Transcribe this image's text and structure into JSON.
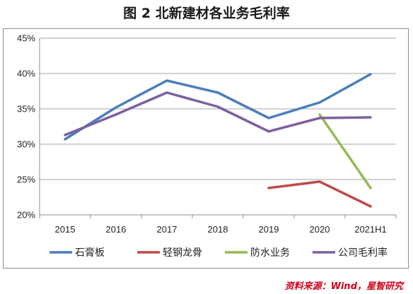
{
  "title": "图 2  北新建材各业务毛利率",
  "source": "资料来源：Wind，星智研究",
  "chart_data": {
    "type": "line",
    "title": "图 2  北新建材各业务毛利率",
    "xlabel": "",
    "ylabel": "",
    "categories": [
      "2015",
      "2016",
      "2017",
      "2018",
      "2019",
      "2020",
      "2021H1"
    ],
    "ylim": [
      0.2,
      0.45
    ],
    "yticks": [
      "20%",
      "25%",
      "30%",
      "35%",
      "40%",
      "45%"
    ],
    "ytick_values": [
      0.2,
      0.25,
      0.3,
      0.35,
      0.4,
      0.45
    ],
    "grid": "horizontal",
    "legend_position": "bottom",
    "series": [
      {
        "name": "石膏板",
        "color": "#4a7ebb",
        "values": [
          0.307,
          0.352,
          0.39,
          0.373,
          0.337,
          0.359,
          0.399
        ]
      },
      {
        "name": "轻钢龙骨",
        "color": "#be4b48",
        "values": [
          null,
          null,
          null,
          null,
          0.238,
          0.247,
          0.212
        ]
      },
      {
        "name": "防水业务",
        "color": "#98b954",
        "values": [
          null,
          null,
          null,
          null,
          null,
          0.342,
          0.238
        ]
      },
      {
        "name": "公司毛利率",
        "color": "#7d60a0",
        "values": [
          0.313,
          0.342,
          0.373,
          0.353,
          0.318,
          0.337,
          0.338
        ]
      }
    ]
  }
}
